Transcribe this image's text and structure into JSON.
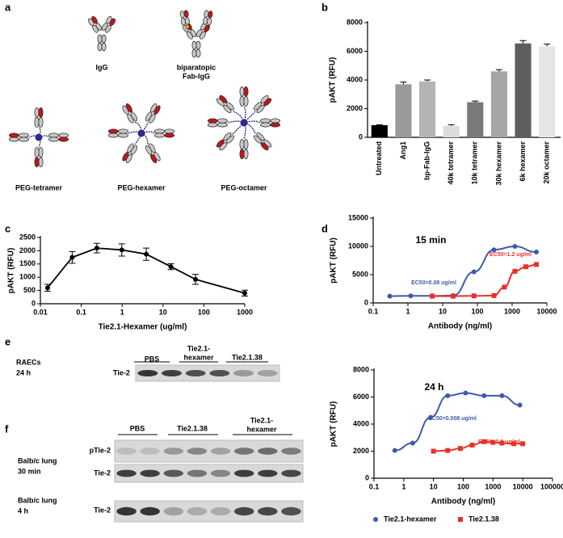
{
  "figure": {
    "panel_letters": [
      "a",
      "b",
      "c",
      "d",
      "e",
      "f"
    ],
    "panel_a": {
      "labels": [
        "IgG",
        "biparatopic",
        "Fab-IgG",
        "PEG-tetramer",
        "PEG-hexamer",
        "PEG-octamer"
      ]
    },
    "panel_e": {
      "sample": [
        "RAECs",
        "24 h"
      ],
      "groups": [
        [
          "PBS"
        ],
        [
          "Tie2.1-",
          "hexamer"
        ],
        [
          "Tie2.1.38"
        ]
      ],
      "band": "Tie-2"
    },
    "panel_f": {
      "groups": [
        [
          "PBS"
        ],
        [
          "Tie2.1.38"
        ],
        [
          "Tie2.1-",
          "hexamer"
        ]
      ],
      "rows": [
        {
          "sample": [
            "Balb/c lung",
            "30 min"
          ],
          "bands": [
            "pTie-2",
            "Tie-2"
          ]
        },
        {
          "sample": [
            "Balb/c lung",
            "4 h"
          ],
          "bands": [
            "Tie-2"
          ]
        }
      ]
    }
  },
  "chart_data": [
    {
      "type": "bar",
      "y_label": "pAKT (RFU)",
      "categories": [
        "Untreated",
        "Ang1",
        "bp-Fab-IgG",
        "40k tetramer",
        "10k tetramer",
        "30k hexamer",
        "6k hexamer",
        "20k octamer"
      ],
      "values": [
        850,
        3700,
        3900,
        800,
        2450,
        4600,
        6550,
        6350
      ],
      "errors": [
        30,
        150,
        100,
        80,
        80,
        120,
        200,
        150
      ],
      "colors": [
        "#000000",
        "#9a9a9a",
        "#b4b4b4",
        "#dcdcdc",
        "#7a7a7a",
        "#a6a6a6",
        "#5e5e5e",
        "#e6e6e6"
      ],
      "ylim": [
        0,
        8000
      ],
      "yticks": [
        0,
        2000,
        4000,
        6000,
        8000
      ]
    },
    {
      "type": "line",
      "y_label": "pAKT (RFU)",
      "x_label": "Tie2.1-Hexamer (ug/ml)",
      "xscale": "log",
      "series": [
        {
          "color": "#000000",
          "marker": "circle",
          "x": [
            0.015,
            0.06,
            0.24,
            0.98,
            3.9,
            15.6,
            62.5,
            1000
          ],
          "values": [
            600,
            1750,
            2100,
            2030,
            1870,
            1400,
            920,
            400
          ],
          "errors": [
            130,
            220,
            180,
            230,
            230,
            110,
            190,
            110
          ]
        }
      ],
      "xlim": [
        0.01,
        1000
      ],
      "xticks": [
        0.01,
        0.1,
        1,
        10,
        100,
        1000
      ],
      "ylim": [
        0,
        2500
      ],
      "yticks": [
        0,
        500,
        1000,
        1500,
        2000,
        2500
      ]
    },
    {
      "type": "scatter",
      "title": "15 min",
      "y_label": "pAKT (RFU)",
      "x_label": "Antibody (ng/ml)",
      "xscale": "log",
      "fit_line": true,
      "series": [
        {
          "color": "#3b5ba9",
          "marker": "circle",
          "x": [
            0.3,
            1.2,
            5,
            20,
            80,
            300,
            1200,
            5000
          ],
          "values": [
            1200,
            1250,
            1250,
            1300,
            5500,
            9400,
            10000,
            9000
          ]
        },
        {
          "color": "#e8312a",
          "marker": "square",
          "x": [
            5,
            20,
            80,
            300,
            600,
            1200,
            2500,
            5000
          ],
          "values": [
            1200,
            1200,
            1250,
            1300,
            2800,
            5600,
            6400,
            6800
          ]
        }
      ],
      "annotations": [
        {
          "text": "EC50=0.08 ug/ml",
          "color": "#3b5ba9"
        },
        {
          "text": "EC50=1.2 ug/ml",
          "color": "#e8312a"
        }
      ],
      "xlim": [
        0.1,
        10000
      ],
      "xticks": [
        0.1,
        1,
        10,
        100,
        1000,
        10000
      ],
      "ylim": [
        0,
        15000
      ],
      "yticks": [
        0,
        5000,
        10000,
        15000
      ]
    },
    {
      "type": "scatter",
      "title": "24 h",
      "y_label": "pAKT (RFU)",
      "x_label": "Antibody (ng/ml)",
      "xscale": "log",
      "fit_line": true,
      "legend": "bottom",
      "series": [
        {
          "name": "Tie2.1-hexamer",
          "color": "#3b5ba9",
          "marker": "circle",
          "x": [
            0.5,
            2,
            8,
            30,
            120,
            500,
            2000,
            8000
          ],
          "values": [
            2050,
            2600,
            4500,
            6100,
            6300,
            6100,
            6100,
            5400
          ]
        },
        {
          "name": "Tie2.1.38",
          "color": "#e8312a",
          "marker": "square",
          "x": [
            10,
            30,
            80,
            200,
            500,
            1000,
            2000,
            5000,
            10000
          ],
          "values": [
            2000,
            2050,
            2200,
            2450,
            2700,
            2650,
            2600,
            2550,
            2550
          ]
        }
      ],
      "annotations": [
        {
          "text": "EC50=0.008 ug/ml",
          "color": "#3b5ba9"
        },
        {
          "text": "EC50=0.1 ug/ml",
          "color": "#e8312a"
        }
      ],
      "xlim": [
        0.1,
        100000
      ],
      "xticks": [
        0.1,
        1,
        10,
        100,
        1000,
        10000,
        100000
      ],
      "ylim": [
        0,
        8000
      ],
      "yticks": [
        0,
        2000,
        4000,
        6000,
        8000
      ]
    }
  ]
}
